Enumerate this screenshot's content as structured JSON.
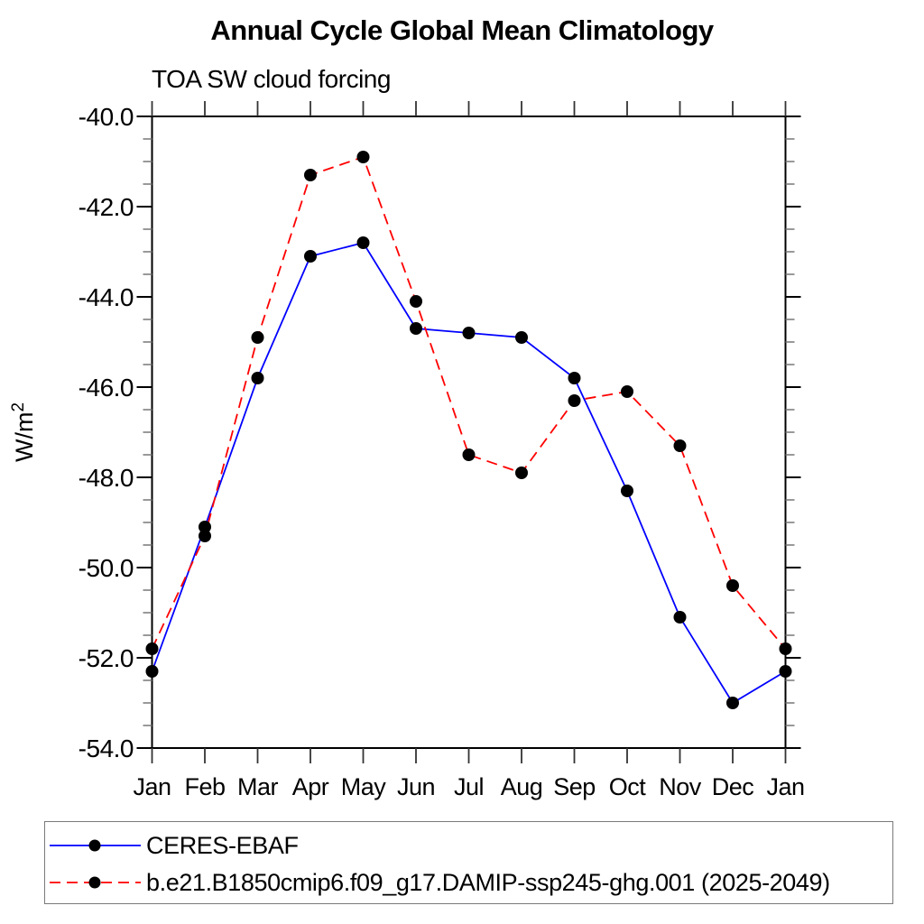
{
  "page": {
    "background": "#ffffff"
  },
  "chart_data": {
    "type": "line",
    "title": "Annual Cycle Global Mean Climatology",
    "subtitle": "TOA SW cloud forcing",
    "ylabel": "W/m²",
    "xlabel": "",
    "categories": [
      "Jan",
      "Feb",
      "Mar",
      "Apr",
      "May",
      "Jun",
      "Jul",
      "Aug",
      "Sep",
      "Oct",
      "Nov",
      "Dec",
      "Jan"
    ],
    "y_axis": {
      "min": -54.0,
      "max": -40.0,
      "major_tick_step": 2.0,
      "minor_tick_step": 0.5,
      "tick_labels": [
        "-40.0",
        "-42.0",
        "-44.0",
        "-46.0",
        "-48.0",
        "-50.0",
        "-52.0",
        "-54.0"
      ]
    },
    "grid": "off",
    "legend_position": "bottom",
    "marker": {
      "shape": "circle",
      "color": "#000000"
    },
    "series": [
      {
        "name": "CERES-EBAF",
        "color": "#0000ff",
        "line_style": "solid",
        "values": [
          -52.3,
          -49.1,
          -45.8,
          -43.1,
          -42.8,
          -44.7,
          -44.8,
          -44.9,
          -45.8,
          -48.3,
          -51.1,
          -53.0,
          -52.3
        ]
      },
      {
        "name": "b.e21.B1850cmip6.f09_g17.DAMIP-ssp245-ghg.001 (2025-2049)",
        "color": "#ff0000",
        "line_style": "dashed",
        "values": [
          -51.8,
          -49.3,
          -44.9,
          -41.3,
          -40.9,
          -44.1,
          -47.5,
          -47.9,
          -46.3,
          -46.1,
          -47.3,
          -50.4,
          -51.8
        ]
      }
    ]
  }
}
